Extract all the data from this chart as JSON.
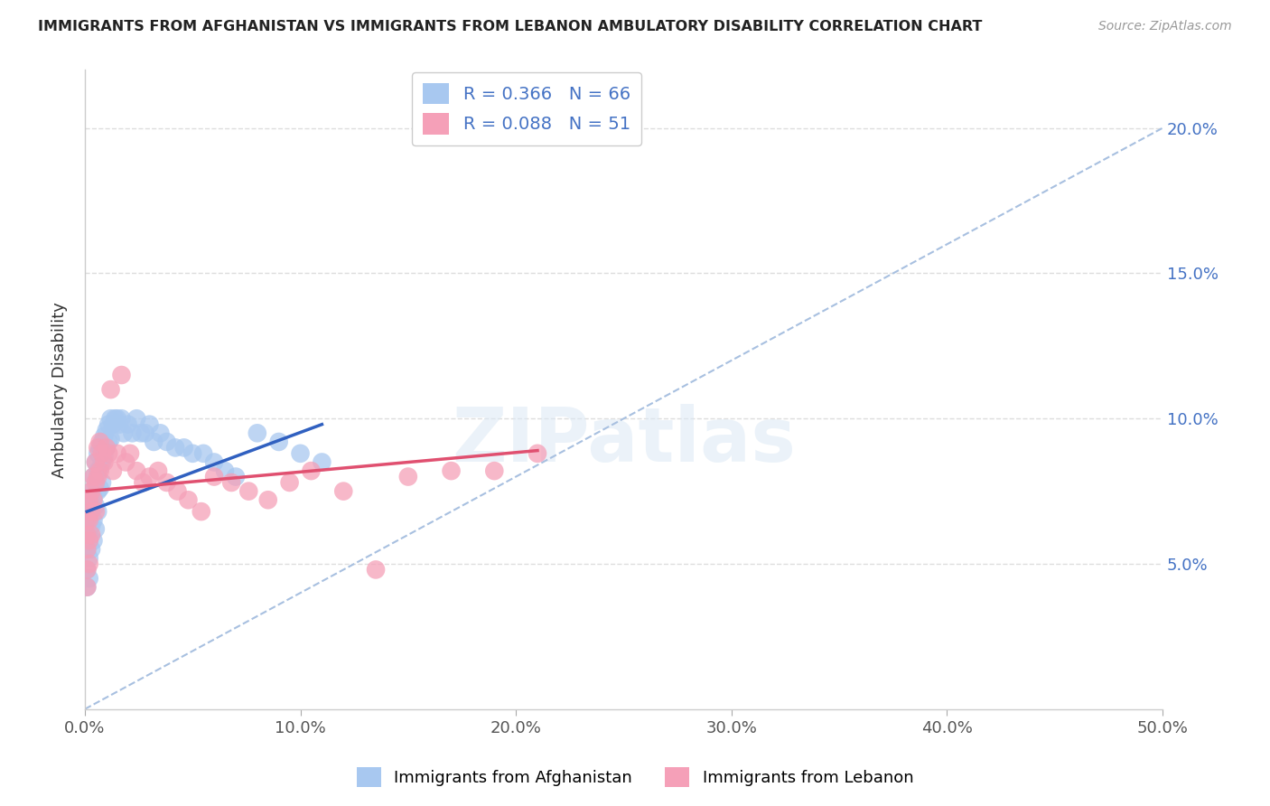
{
  "title": "IMMIGRANTS FROM AFGHANISTAN VS IMMIGRANTS FROM LEBANON AMBULATORY DISABILITY CORRELATION CHART",
  "source": "Source: ZipAtlas.com",
  "ylabel": "Ambulatory Disability",
  "watermark": "ZIPatlas",
  "afghanistan_R": 0.366,
  "afghanistan_N": 66,
  "lebanon_R": 0.088,
  "lebanon_N": 51,
  "afghanistan_color": "#a8c8f0",
  "lebanon_color": "#f5a0b8",
  "trend_afghanistan_color": "#3060c0",
  "trend_lebanon_color": "#e05070",
  "trend_dashed_color": "#a8c0e0",
  "xlim": [
    0.0,
    0.5
  ],
  "ylim": [
    0.0,
    0.22
  ],
  "yticks": [
    0.05,
    0.1,
    0.15,
    0.2
  ],
  "ytick_labels": [
    "5.0%",
    "10.0%",
    "15.0%",
    "20.0%"
  ],
  "xticks": [
    0.0,
    0.1,
    0.2,
    0.3,
    0.4,
    0.5
  ],
  "xtick_labels": [
    "0.0%",
    "10.0%",
    "20.0%",
    "30.0%",
    "40.0%",
    "50.0%"
  ],
  "afghanistan_x": [
    0.001,
    0.001,
    0.001,
    0.001,
    0.001,
    0.002,
    0.002,
    0.002,
    0.002,
    0.002,
    0.003,
    0.003,
    0.003,
    0.003,
    0.004,
    0.004,
    0.004,
    0.004,
    0.005,
    0.005,
    0.005,
    0.005,
    0.006,
    0.006,
    0.006,
    0.006,
    0.007,
    0.007,
    0.007,
    0.008,
    0.008,
    0.008,
    0.009,
    0.009,
    0.01,
    0.01,
    0.011,
    0.011,
    0.012,
    0.012,
    0.013,
    0.014,
    0.015,
    0.016,
    0.017,
    0.018,
    0.02,
    0.022,
    0.024,
    0.026,
    0.028,
    0.03,
    0.032,
    0.035,
    0.038,
    0.042,
    0.046,
    0.05,
    0.055,
    0.06,
    0.065,
    0.07,
    0.08,
    0.09,
    0.1,
    0.11
  ],
  "afghanistan_y": [
    0.065,
    0.06,
    0.055,
    0.048,
    0.042,
    0.07,
    0.065,
    0.058,
    0.052,
    0.045,
    0.075,
    0.07,
    0.063,
    0.055,
    0.08,
    0.073,
    0.065,
    0.058,
    0.085,
    0.078,
    0.07,
    0.062,
    0.088,
    0.082,
    0.075,
    0.068,
    0.09,
    0.083,
    0.076,
    0.092,
    0.085,
    0.078,
    0.094,
    0.087,
    0.096,
    0.09,
    0.098,
    0.092,
    0.1,
    0.093,
    0.098,
    0.1,
    0.1,
    0.098,
    0.1,
    0.095,
    0.098,
    0.095,
    0.1,
    0.095,
    0.095,
    0.098,
    0.092,
    0.095,
    0.092,
    0.09,
    0.09,
    0.088,
    0.088,
    0.085,
    0.082,
    0.08,
    0.095,
    0.092,
    0.088,
    0.085
  ],
  "lebanon_x": [
    0.001,
    0.001,
    0.001,
    0.001,
    0.001,
    0.002,
    0.002,
    0.002,
    0.002,
    0.003,
    0.003,
    0.003,
    0.004,
    0.004,
    0.005,
    0.005,
    0.005,
    0.006,
    0.006,
    0.007,
    0.007,
    0.008,
    0.009,
    0.01,
    0.011,
    0.012,
    0.013,
    0.015,
    0.017,
    0.019,
    0.021,
    0.024,
    0.027,
    0.03,
    0.034,
    0.038,
    0.043,
    0.048,
    0.054,
    0.06,
    0.068,
    0.076,
    0.085,
    0.095,
    0.105,
    0.12,
    0.135,
    0.15,
    0.17,
    0.19,
    0.21
  ],
  "lebanon_y": [
    0.065,
    0.06,
    0.055,
    0.048,
    0.042,
    0.072,
    0.065,
    0.058,
    0.05,
    0.075,
    0.068,
    0.06,
    0.08,
    0.072,
    0.085,
    0.078,
    0.068,
    0.09,
    0.08,
    0.092,
    0.082,
    0.088,
    0.085,
    0.09,
    0.088,
    0.11,
    0.082,
    0.088,
    0.115,
    0.085,
    0.088,
    0.082,
    0.078,
    0.08,
    0.082,
    0.078,
    0.075,
    0.072,
    0.068,
    0.08,
    0.078,
    0.075,
    0.072,
    0.078,
    0.082,
    0.075,
    0.048,
    0.08,
    0.082,
    0.082,
    0.088
  ],
  "trend_af_x0": 0.001,
  "trend_af_x1": 0.11,
  "trend_af_y0": 0.068,
  "trend_af_y1": 0.098,
  "trend_lb_x0": 0.001,
  "trend_lb_x1": 0.21,
  "trend_lb_y0": 0.075,
  "trend_lb_y1": 0.089
}
